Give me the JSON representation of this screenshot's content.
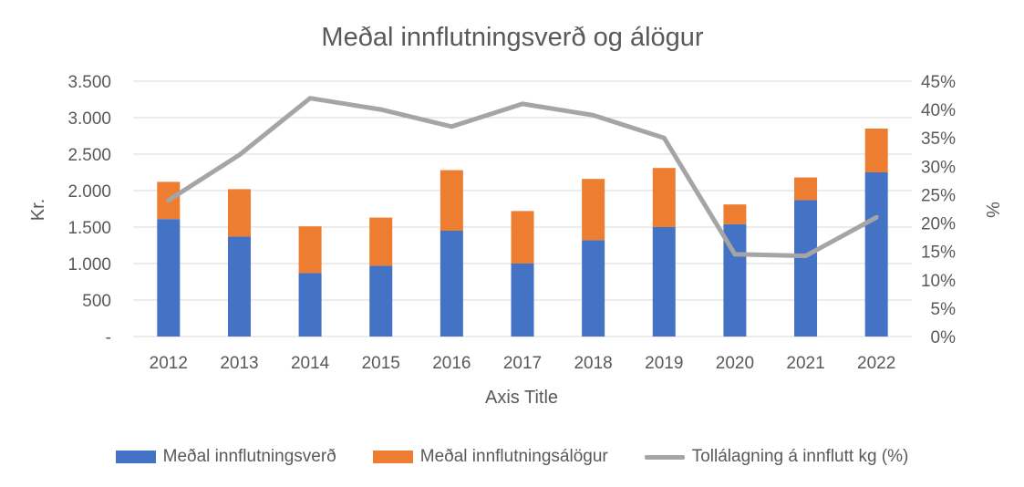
{
  "chart_data": {
    "type": "bar",
    "stacked": true,
    "title": "Meðal innflutningsverð og álögur",
    "xlabel": "Axis Title",
    "ylabel": "Kr.",
    "y2label": "%",
    "categories": [
      "2012",
      "2013",
      "2014",
      "2015",
      "2016",
      "2017",
      "2018",
      "2019",
      "2020",
      "2021",
      "2022"
    ],
    "ylim": [
      0,
      3500
    ],
    "y_ticks": [
      0,
      500,
      1000,
      1500,
      2000,
      2500,
      3000,
      3500
    ],
    "y_tick_labels": [
      "-",
      "500",
      "1.000",
      "1.500",
      "2.000",
      "2.500",
      "3.000",
      "3.500"
    ],
    "y2lim": [
      0,
      45
    ],
    "y2_ticks": [
      0,
      5,
      10,
      15,
      20,
      25,
      30,
      35,
      40,
      45
    ],
    "y2_tick_labels": [
      "0%",
      "5%",
      "10%",
      "15%",
      "20%",
      "25%",
      "30%",
      "35%",
      "40%",
      "45%"
    ],
    "gridlines": true,
    "legend_position": "bottom",
    "series": [
      {
        "name": "Meðal innflutningsverð",
        "type": "bar",
        "axis": "left",
        "color": "#4472C4",
        "values": [
          1610,
          1370,
          870,
          970,
          1450,
          1000,
          1320,
          1500,
          1540,
          1870,
          2250
        ]
      },
      {
        "name": "Meðal innflutningsálögur",
        "type": "bar",
        "axis": "left",
        "color": "#ED7D31",
        "values": [
          510,
          650,
          640,
          660,
          830,
          720,
          840,
          810,
          270,
          310,
          600
        ]
      },
      {
        "name": "Tollálagning á innflutt kg (%)",
        "type": "line",
        "axis": "right",
        "color": "#A5A5A5",
        "values": [
          24,
          32,
          42,
          40,
          37,
          41,
          39,
          35,
          14.5,
          14.2,
          21
        ]
      }
    ]
  }
}
